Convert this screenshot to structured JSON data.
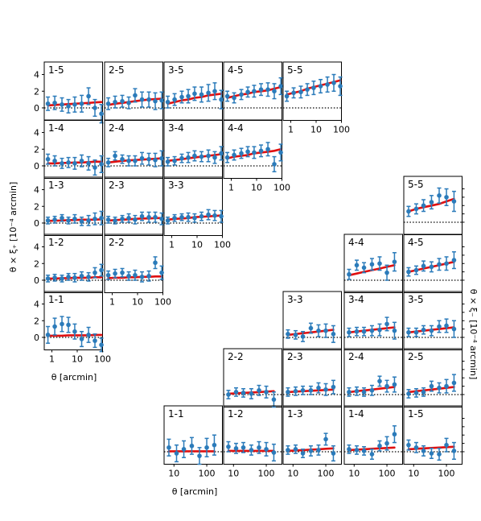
{
  "chart_data": {
    "type": "scatter",
    "colors": {
      "model": "#e01010",
      "data": "#2b7bba",
      "zero": "#000000"
    },
    "xi_plus": {
      "ylabel": "θ × ξ₊ [10⁻⁴ arcmin]",
      "xlabel": "θ [arcmin]",
      "x_ticks": [
        "1",
        "10",
        "100"
      ],
      "y_ticks": [
        "0",
        "2",
        "4"
      ],
      "xlim": [
        0.5,
        100
      ],
      "ylim": [
        -1.5,
        5.5
      ],
      "x": [
        0.7,
        1.3,
        2.5,
        4.5,
        8,
        15,
        28,
        50,
        90
      ],
      "panels": [
        {
          "label": "1-5",
          "model": [
            0.3,
            0.35,
            0.4,
            0.45,
            0.5,
            0.55,
            0.6,
            0.65,
            0.7
          ],
          "values": [
            0.5,
            0.6,
            0.4,
            0.2,
            0.4,
            0.5,
            1.4,
            0.0,
            -0.7
          ],
          "errors": [
            0.8,
            0.8,
            0.8,
            0.8,
            0.9,
            1.0,
            1.0,
            1.0,
            1.1
          ]
        },
        {
          "label": "2-5",
          "model": [
            0.35,
            0.5,
            0.6,
            0.7,
            0.8,
            0.9,
            1.0,
            1.05,
            1.1
          ],
          "values": [
            0.5,
            0.7,
            0.8,
            0.6,
            1.5,
            1.0,
            1.0,
            0.8,
            0.9
          ],
          "errors": [
            0.7,
            0.7,
            0.7,
            0.7,
            0.8,
            0.9,
            0.9,
            1.0,
            1.0
          ]
        },
        {
          "label": "3-5",
          "model": [
            0.5,
            0.7,
            0.9,
            1.0,
            1.2,
            1.3,
            1.5,
            1.6,
            1.7
          ],
          "values": [
            0.7,
            1.0,
            1.3,
            1.4,
            1.7,
            1.6,
            1.8,
            2.0,
            1.0
          ],
          "errors": [
            0.7,
            0.7,
            0.7,
            0.8,
            0.8,
            0.9,
            1.0,
            1.0,
            1.1
          ]
        },
        {
          "label": "4-5",
          "model": [
            1.2,
            1.4,
            1.6,
            1.7,
            1.9,
            2.0,
            2.1,
            2.3,
            2.5
          ],
          "values": [
            1.4,
            1.2,
            1.6,
            1.9,
            2.0,
            2.2,
            2.2,
            2.0,
            2.6
          ],
          "errors": [
            0.6,
            0.6,
            0.6,
            0.6,
            0.7,
            0.7,
            0.8,
            0.9,
            1.0
          ]
        },
        {
          "label": "5-5",
          "model": [
            1.6,
            1.8,
            2.0,
            2.3,
            2.5,
            2.7,
            2.9,
            3.1,
            3.3
          ],
          "values": [
            1.4,
            1.8,
            1.9,
            2.2,
            2.4,
            2.6,
            2.8,
            3.0,
            2.6
          ],
          "errors": [
            0.6,
            0.6,
            0.7,
            0.7,
            0.8,
            0.8,
            0.9,
            1.0,
            1.1
          ]
        },
        {
          "label": "1-4",
          "model": [
            0.3,
            0.3,
            0.35,
            0.35,
            0.4,
            0.4,
            0.45,
            0.5,
            0.5
          ],
          "values": [
            0.8,
            0.6,
            0.3,
            0.4,
            0.3,
            0.6,
            0.3,
            -0.2,
            0.2
          ],
          "errors": [
            0.6,
            0.6,
            0.6,
            0.6,
            0.7,
            0.7,
            0.8,
            0.9,
            1.0
          ]
        },
        {
          "label": "2-4",
          "model": [
            0.4,
            0.5,
            0.6,
            0.65,
            0.7,
            0.75,
            0.8,
            0.85,
            0.9
          ],
          "values": [
            0.4,
            1.2,
            0.8,
            0.6,
            0.6,
            0.9,
            0.8,
            0.7,
            0.9
          ],
          "errors": [
            0.5,
            0.5,
            0.5,
            0.6,
            0.6,
            0.7,
            0.7,
            0.8,
            0.9
          ]
        },
        {
          "label": "3-4",
          "model": [
            0.6,
            0.7,
            0.8,
            0.9,
            1.0,
            1.1,
            1.2,
            1.3,
            1.4
          ],
          "values": [
            0.5,
            0.6,
            0.9,
            1.0,
            1.2,
            1.1,
            1.2,
            1.0,
            1.5
          ],
          "errors": [
            0.5,
            0.5,
            0.5,
            0.6,
            0.6,
            0.6,
            0.7,
            0.7,
            0.8
          ]
        },
        {
          "label": "4-4",
          "model": [
            0.9,
            1.1,
            1.2,
            1.3,
            1.5,
            1.6,
            1.7,
            1.8,
            2.0
          ],
          "values": [
            1.0,
            1.3,
            1.5,
            1.7,
            1.6,
            1.8,
            2.0,
            0.2,
            1.6
          ],
          "errors": [
            0.6,
            0.6,
            0.6,
            0.6,
            0.7,
            0.7,
            0.8,
            0.9,
            1.0
          ]
        },
        {
          "label": "1-3",
          "model": [
            0.25,
            0.3,
            0.3,
            0.35,
            0.35,
            0.4,
            0.4,
            0.4,
            0.45
          ],
          "values": [
            0.3,
            0.4,
            0.6,
            0.3,
            0.5,
            0.2,
            0.3,
            0.5,
            0.6
          ],
          "errors": [
            0.4,
            0.4,
            0.4,
            0.4,
            0.5,
            0.5,
            0.6,
            0.7,
            0.8
          ]
        },
        {
          "label": "2-3",
          "model": [
            0.3,
            0.35,
            0.4,
            0.45,
            0.5,
            0.55,
            0.55,
            0.6,
            0.6
          ],
          "values": [
            0.4,
            0.3,
            0.5,
            0.6,
            0.4,
            0.8,
            0.7,
            0.7,
            0.5
          ],
          "errors": [
            0.4,
            0.4,
            0.4,
            0.5,
            0.5,
            0.5,
            0.6,
            0.6,
            0.7
          ]
        },
        {
          "label": "3-3",
          "model": [
            0.4,
            0.5,
            0.55,
            0.6,
            0.7,
            0.75,
            0.8,
            0.85,
            0.9
          ],
          "values": [
            0.3,
            0.6,
            0.7,
            0.7,
            0.6,
            0.8,
            1.0,
            0.9,
            0.8
          ],
          "errors": [
            0.4,
            0.4,
            0.4,
            0.5,
            0.5,
            0.5,
            0.6,
            0.6,
            0.7
          ]
        },
        {
          "label": "1-2",
          "model": [
            0.2,
            0.2,
            0.25,
            0.25,
            0.3,
            0.3,
            0.3,
            0.35,
            0.35
          ],
          "values": [
            0.2,
            0.3,
            0.2,
            0.4,
            0.3,
            0.5,
            0.4,
            0.9,
            1.2
          ],
          "errors": [
            0.4,
            0.4,
            0.4,
            0.4,
            0.5,
            0.5,
            0.5,
            0.6,
            0.7
          ]
        },
        {
          "label": "2-2",
          "model": [
            0.25,
            0.3,
            0.3,
            0.35,
            0.35,
            0.4,
            0.4,
            0.45,
            0.45
          ],
          "values": [
            0.6,
            0.8,
            0.9,
            0.5,
            0.6,
            0.4,
            0.5,
            2.1,
            0.9
          ],
          "errors": [
            0.5,
            0.5,
            0.5,
            0.5,
            0.6,
            0.6,
            0.6,
            0.7,
            0.8
          ]
        },
        {
          "label": "1-1",
          "model": [
            0.2,
            0.2,
            0.2,
            0.25,
            0.25,
            0.25,
            0.25,
            0.3,
            0.3
          ],
          "values": [
            0.3,
            1.3,
            1.6,
            1.5,
            0.7,
            -0.2,
            0.3,
            -0.4,
            -0.9
          ],
          "errors": [
            1.0,
            1.0,
            0.9,
            0.9,
            0.9,
            0.9,
            0.9,
            0.8,
            0.8
          ]
        }
      ]
    },
    "xi_minus": {
      "ylabel": "θ × ξ₋ [10⁻⁴ arcmin]",
      "xlabel": "θ [arcmin]",
      "x_ticks": [
        "10",
        "100"
      ],
      "xlim": [
        5,
        300
      ],
      "ylim": [
        -1.5,
        5.5
      ],
      "x": [
        7,
        12,
        20,
        35,
        60,
        100,
        170
      ],
      "panels": [
        {
          "label": "5-5",
          "model": [
            1.3,
            1.6,
            1.8,
            2.0,
            2.2,
            2.5,
            2.8
          ],
          "values": [
            1.3,
            1.6,
            2.0,
            2.4,
            3.2,
            3.0,
            2.5
          ],
          "errors": [
            0.6,
            0.6,
            0.7,
            0.8,
            0.9,
            1.0,
            1.2
          ]
        },
        {
          "label": "4-4",
          "model": [
            0.6,
            0.8,
            1.0,
            1.2,
            1.4,
            1.6,
            1.8
          ],
          "values": [
            0.7,
            1.8,
            1.5,
            1.9,
            2.0,
            0.9,
            2.2
          ],
          "errors": [
            0.6,
            0.6,
            0.6,
            0.7,
            0.8,
            0.9,
            1.1
          ]
        },
        {
          "label": "4-5",
          "model": [
            1.0,
            1.2,
            1.4,
            1.6,
            1.8,
            2.0,
            2.2
          ],
          "values": [
            1.0,
            1.2,
            1.7,
            1.6,
            1.9,
            2.0,
            2.4
          ],
          "errors": [
            0.5,
            0.5,
            0.6,
            0.6,
            0.7,
            0.8,
            1.0
          ]
        },
        {
          "label": "3-3",
          "model": [
            0.3,
            0.4,
            0.5,
            0.6,
            0.7,
            0.8,
            0.9
          ],
          "values": [
            0.4,
            0.3,
            0.1,
            1.1,
            0.8,
            0.8,
            0.4
          ],
          "errors": [
            0.5,
            0.5,
            0.6,
            0.6,
            0.7,
            0.8,
            1.0
          ]
        },
        {
          "label": "3-4",
          "model": [
            0.6,
            0.7,
            0.8,
            0.9,
            1.0,
            1.1,
            1.2
          ],
          "values": [
            0.6,
            0.7,
            0.7,
            0.8,
            0.9,
            1.6,
            0.8
          ],
          "errors": [
            0.5,
            0.5,
            0.5,
            0.6,
            0.7,
            0.8,
            1.0
          ]
        },
        {
          "label": "3-5",
          "model": [
            0.6,
            0.7,
            0.8,
            0.9,
            1.0,
            1.1,
            1.2
          ],
          "values": [
            0.6,
            0.6,
            0.9,
            0.8,
            1.3,
            1.4,
            1.0
          ],
          "errors": [
            0.5,
            0.5,
            0.5,
            0.6,
            0.7,
            0.8,
            1.0
          ]
        },
        {
          "label": "2-2",
          "model": [
            0.1,
            0.15,
            0.2,
            0.25,
            0.3,
            0.35,
            0.4
          ],
          "values": [
            0.0,
            0.3,
            0.2,
            0.1,
            0.5,
            0.3,
            -0.6
          ],
          "errors": [
            0.5,
            0.5,
            0.5,
            0.6,
            0.6,
            0.7,
            0.9
          ]
        },
        {
          "label": "2-3",
          "model": [
            0.3,
            0.35,
            0.4,
            0.45,
            0.5,
            0.55,
            0.6
          ],
          "values": [
            0.3,
            0.4,
            0.5,
            0.5,
            0.8,
            0.6,
            0.9
          ],
          "errors": [
            0.5,
            0.5,
            0.5,
            0.5,
            0.6,
            0.7,
            0.8
          ]
        },
        {
          "label": "2-4",
          "model": [
            0.3,
            0.4,
            0.5,
            0.6,
            0.7,
            0.8,
            0.9
          ],
          "values": [
            0.3,
            0.4,
            0.3,
            0.5,
            1.6,
            1.0,
            1.2
          ],
          "errors": [
            0.5,
            0.5,
            0.5,
            0.6,
            0.6,
            0.7,
            0.9
          ]
        },
        {
          "label": "2-5",
          "model": [
            0.3,
            0.4,
            0.5,
            0.6,
            0.7,
            0.8,
            0.9
          ],
          "values": [
            0.1,
            0.2,
            0.3,
            1.0,
            0.8,
            1.0,
            1.4
          ],
          "errors": [
            0.5,
            0.5,
            0.5,
            0.6,
            0.6,
            0.8,
            1.0
          ]
        },
        {
          "label": "1-1",
          "model": [
            0.05,
            0.05,
            0.05,
            0.05,
            0.05,
            0.05,
            0.05
          ],
          "values": [
            0.5,
            -0.2,
            0.3,
            0.7,
            -0.5,
            0.5,
            0.8
          ],
          "errors": [
            1.0,
            1.0,
            1.0,
            1.0,
            1.0,
            1.1,
            1.2
          ]
        },
        {
          "label": "1-2",
          "model": [
            0.1,
            0.1,
            0.1,
            0.1,
            0.1,
            0.1,
            0.1
          ],
          "values": [
            0.6,
            0.4,
            0.5,
            0.2,
            0.5,
            0.3,
            -0.1
          ],
          "errors": [
            0.6,
            0.6,
            0.6,
            0.6,
            0.7,
            0.8,
            1.0
          ]
        },
        {
          "label": "1-3",
          "model": [
            0.1,
            0.15,
            0.2,
            0.25,
            0.3,
            0.35,
            0.4
          ],
          "values": [
            0.2,
            0.3,
            -0.2,
            0.1,
            0.2,
            1.5,
            -0.2
          ],
          "errors": [
            0.5,
            0.5,
            0.5,
            0.6,
            0.6,
            0.7,
            0.9
          ]
        },
        {
          "label": "1-4",
          "model": [
            0.2,
            0.25,
            0.3,
            0.35,
            0.4,
            0.45,
            0.5
          ],
          "values": [
            0.3,
            0.2,
            0.1,
            -0.3,
            0.7,
            1.0,
            2.1
          ],
          "errors": [
            0.5,
            0.5,
            0.5,
            0.6,
            0.6,
            0.8,
            1.0
          ]
        },
        {
          "label": "1-5",
          "model": [
            0.3,
            0.35,
            0.4,
            0.45,
            0.5,
            0.55,
            0.6
          ],
          "values": [
            0.8,
            0.5,
            0.1,
            -0.2,
            -0.3,
            0.8,
            0.1
          ],
          "errors": [
            0.6,
            0.6,
            0.6,
            0.6,
            0.7,
            0.8,
            1.0
          ]
        }
      ]
    }
  }
}
